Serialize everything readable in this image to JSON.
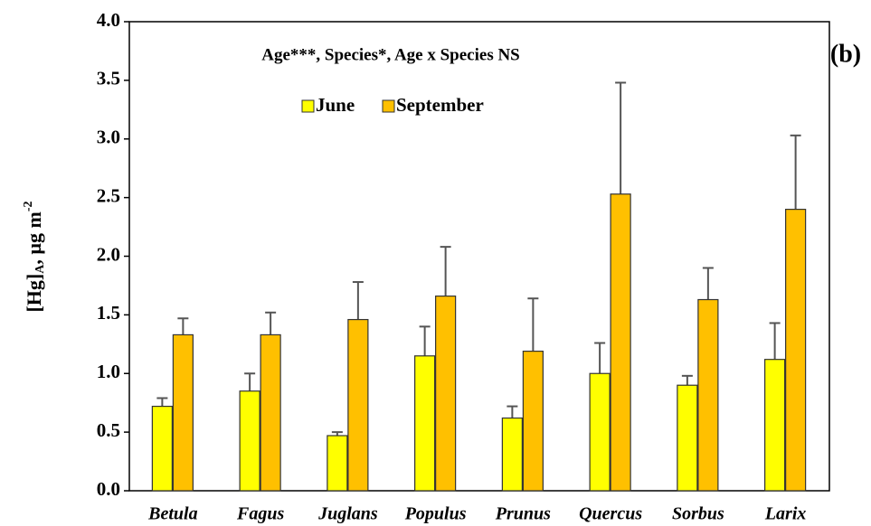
{
  "chart_data": {
    "type": "bar",
    "annotation": "Age***, Species*, Age x Species NS",
    "panel_label": "(b)",
    "ylabel": {
      "main": "[Hg]",
      "sub": "A",
      "unit": ", µg m",
      "sup": "-2"
    },
    "categories": [
      "Betula",
      "Fagus",
      "Juglans",
      "Populus",
      "Prunus",
      "Quercus",
      "Sorbus",
      "Larix"
    ],
    "series": [
      {
        "name": "June",
        "color": "#ffff00",
        "values": [
          0.72,
          0.85,
          0.47,
          1.15,
          0.62,
          1.0,
          0.9,
          1.12
        ],
        "errors": [
          0.07,
          0.15,
          0.03,
          0.25,
          0.1,
          0.26,
          0.08,
          0.31
        ]
      },
      {
        "name": "September",
        "color": "#ffc000",
        "values": [
          1.33,
          1.33,
          1.46,
          1.66,
          1.19,
          2.53,
          1.63,
          2.4
        ],
        "errors": [
          0.14,
          0.19,
          0.32,
          0.42,
          0.45,
          0.95,
          0.27,
          0.63
        ]
      }
    ],
    "ylim": [
      0,
      4
    ],
    "yticks": [
      {
        "value": 0,
        "label": "0.0"
      },
      {
        "value": 0.5,
        "label": "0.5"
      },
      {
        "value": 1,
        "label": "1.0"
      },
      {
        "value": 1.5,
        "label": "1.5"
      },
      {
        "value": 2,
        "label": "2.0"
      },
      {
        "value": 2.5,
        "label": "2.5"
      },
      {
        "value": 3,
        "label": "3.0"
      },
      {
        "value": 3.5,
        "label": "3.5"
      },
      {
        "value": 4,
        "label": "4.0"
      }
    ],
    "grid": false
  }
}
